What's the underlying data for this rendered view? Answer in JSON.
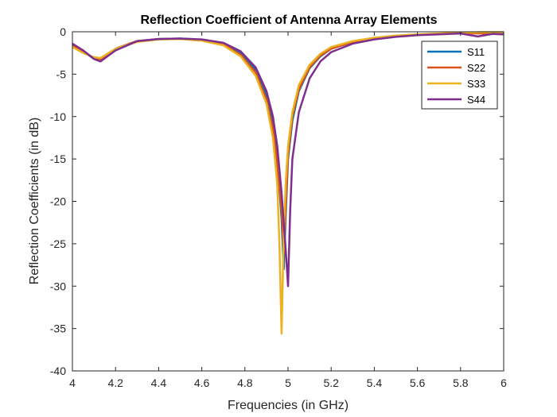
{
  "chart_data": {
    "type": "line",
    "title": "Reflection Coefficient of Antenna Array Elements",
    "xlabel": "Frequencies (in GHz)",
    "ylabel": "Reflection Coefficients (in dB)",
    "xlim": [
      4,
      6
    ],
    "ylim": [
      -40,
      0
    ],
    "x_ticks": [
      4,
      4.2,
      4.4,
      4.6,
      4.8,
      5,
      5.2,
      5.4,
      5.6,
      5.8,
      6
    ],
    "x_tick_labels": [
      "4",
      "4.2",
      "4.4",
      "4.6",
      "4.8",
      "5",
      "5.2",
      "5.4",
      "5.6",
      "5.8",
      "6"
    ],
    "y_ticks": [
      0,
      -5,
      -10,
      -15,
      -20,
      -25,
      -30,
      -35,
      -40
    ],
    "y_tick_labels": [
      "0",
      "-5",
      "-10",
      "-15",
      "-20",
      "-25",
      "-30",
      "-35",
      "-40"
    ],
    "grid": false,
    "legend_position": "top-right",
    "series": [
      {
        "name": "S11",
        "color": "#0072BD",
        "points": [
          [
            4.0,
            -1.5
          ],
          [
            4.05,
            -2.3
          ],
          [
            4.1,
            -3.2
          ],
          [
            4.13,
            -3.4
          ],
          [
            4.2,
            -2.0
          ],
          [
            4.3,
            -1.1
          ],
          [
            4.4,
            -0.85
          ],
          [
            4.5,
            -0.8
          ],
          [
            4.6,
            -0.95
          ],
          [
            4.7,
            -1.4
          ],
          [
            4.78,
            -2.5
          ],
          [
            4.85,
            -4.5
          ],
          [
            4.9,
            -7.5
          ],
          [
            4.93,
            -11.0
          ],
          [
            4.95,
            -15.0
          ],
          [
            4.97,
            -22.0
          ],
          [
            4.98,
            -28.0
          ],
          [
            4.99,
            -21.0
          ],
          [
            5.0,
            -15.0
          ],
          [
            5.02,
            -10.5
          ],
          [
            5.05,
            -7.0
          ],
          [
            5.1,
            -4.3
          ],
          [
            5.15,
            -2.9
          ],
          [
            5.2,
            -2.0
          ],
          [
            5.3,
            -1.2
          ],
          [
            5.4,
            -0.8
          ],
          [
            5.5,
            -0.5
          ],
          [
            5.6,
            -0.35
          ],
          [
            5.7,
            -0.25
          ],
          [
            5.8,
            -0.15
          ],
          [
            5.9,
            -0.15
          ],
          [
            6.0,
            -0.2
          ]
        ]
      },
      {
        "name": "S22",
        "color": "#D95319",
        "points": [
          [
            4.0,
            -1.6
          ],
          [
            4.05,
            -2.4
          ],
          [
            4.1,
            -3.1
          ],
          [
            4.13,
            -3.3
          ],
          [
            4.2,
            -2.0
          ],
          [
            4.3,
            -1.1
          ],
          [
            4.4,
            -0.85
          ],
          [
            4.5,
            -0.82
          ],
          [
            4.6,
            -1.0
          ],
          [
            4.7,
            -1.5
          ],
          [
            4.78,
            -2.7
          ],
          [
            4.85,
            -4.8
          ],
          [
            4.9,
            -8.0
          ],
          [
            4.93,
            -11.5
          ],
          [
            4.95,
            -15.5
          ],
          [
            4.97,
            -21.0
          ],
          [
            4.98,
            -26.0
          ],
          [
            4.99,
            -20.0
          ],
          [
            5.0,
            -14.5
          ],
          [
            5.02,
            -10.0
          ],
          [
            5.05,
            -6.8
          ],
          [
            5.1,
            -4.2
          ],
          [
            5.15,
            -2.8
          ],
          [
            5.2,
            -2.0
          ],
          [
            5.3,
            -1.2
          ],
          [
            5.4,
            -0.8
          ],
          [
            5.5,
            -0.5
          ],
          [
            5.6,
            -0.35
          ],
          [
            5.7,
            -0.25
          ],
          [
            5.8,
            -0.15
          ],
          [
            5.9,
            -0.2
          ],
          [
            6.0,
            -0.3
          ]
        ]
      },
      {
        "name": "S33",
        "color": "#EDB120",
        "points": [
          [
            4.0,
            -1.8
          ],
          [
            4.05,
            -2.5
          ],
          [
            4.1,
            -3.0
          ],
          [
            4.13,
            -3.1
          ],
          [
            4.2,
            -2.0
          ],
          [
            4.3,
            -1.2
          ],
          [
            4.4,
            -0.9
          ],
          [
            4.5,
            -0.85
          ],
          [
            4.6,
            -1.05
          ],
          [
            4.7,
            -1.6
          ],
          [
            4.78,
            -2.9
          ],
          [
            4.85,
            -5.2
          ],
          [
            4.9,
            -8.5
          ],
          [
            4.93,
            -12.5
          ],
          [
            4.95,
            -18.0
          ],
          [
            4.96,
            -25.0
          ],
          [
            4.97,
            -35.6
          ],
          [
            4.98,
            -24.0
          ],
          [
            4.99,
            -17.5
          ],
          [
            5.0,
            -13.5
          ],
          [
            5.02,
            -9.5
          ],
          [
            5.05,
            -6.3
          ],
          [
            5.1,
            -3.9
          ],
          [
            5.15,
            -2.6
          ],
          [
            5.2,
            -1.8
          ],
          [
            5.3,
            -1.1
          ],
          [
            5.4,
            -0.7
          ],
          [
            5.5,
            -0.45
          ],
          [
            5.6,
            -0.3
          ],
          [
            5.7,
            -0.2
          ],
          [
            5.8,
            -0.1
          ],
          [
            5.9,
            -0.05
          ],
          [
            6.0,
            -0.05
          ]
        ]
      },
      {
        "name": "S44",
        "color": "#7E2F8E",
        "points": [
          [
            4.0,
            -1.4
          ],
          [
            4.05,
            -2.2
          ],
          [
            4.1,
            -3.2
          ],
          [
            4.13,
            -3.5
          ],
          [
            4.2,
            -2.2
          ],
          [
            4.3,
            -1.1
          ],
          [
            4.4,
            -0.85
          ],
          [
            4.5,
            -0.8
          ],
          [
            4.6,
            -0.9
          ],
          [
            4.7,
            -1.3
          ],
          [
            4.78,
            -2.3
          ],
          [
            4.85,
            -4.2
          ],
          [
            4.9,
            -7.0
          ],
          [
            4.93,
            -10.0
          ],
          [
            4.95,
            -13.5
          ],
          [
            4.97,
            -19.0
          ],
          [
            4.99,
            -26.0
          ],
          [
            5.0,
            -30.0
          ],
          [
            5.01,
            -21.0
          ],
          [
            5.02,
            -15.0
          ],
          [
            5.05,
            -9.5
          ],
          [
            5.1,
            -5.5
          ],
          [
            5.15,
            -3.5
          ],
          [
            5.2,
            -2.4
          ],
          [
            5.3,
            -1.4
          ],
          [
            5.4,
            -0.9
          ],
          [
            5.5,
            -0.6
          ],
          [
            5.6,
            -0.4
          ],
          [
            5.7,
            -0.3
          ],
          [
            5.8,
            -0.2
          ],
          [
            5.88,
            -0.55
          ],
          [
            5.95,
            -0.25
          ],
          [
            6.0,
            -0.3
          ]
        ]
      }
    ]
  }
}
